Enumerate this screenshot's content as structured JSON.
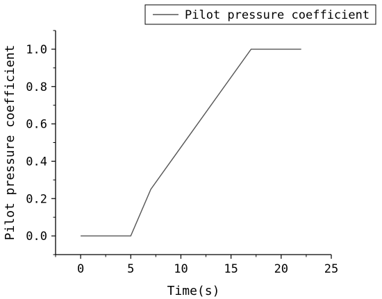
{
  "chart_data": {
    "type": "line",
    "title": "",
    "xlabel": "Time(s)",
    "ylabel": "Pilot pressure coefficient",
    "xlim": [
      -2.5,
      25
    ],
    "ylim": [
      -0.1,
      1.1
    ],
    "xticks": [
      0,
      5,
      10,
      15,
      20,
      25
    ],
    "xtick_labels": [
      "0",
      "5",
      "10",
      "15",
      "20",
      "25"
    ],
    "yticks": [
      0.0,
      0.2,
      0.4,
      0.6,
      0.8,
      1.0
    ],
    "ytick_labels": [
      "0.0",
      "0.2",
      "0.4",
      "0.6",
      "0.8",
      "1.0"
    ],
    "grid": false,
    "legend_position": "top-right",
    "series": [
      {
        "name": "Pilot pressure coefficient",
        "color": "#555555",
        "x": [
          0,
          5,
          7,
          17,
          22
        ],
        "y": [
          0,
          0,
          0.25,
          1.0,
          1.0
        ]
      }
    ]
  }
}
